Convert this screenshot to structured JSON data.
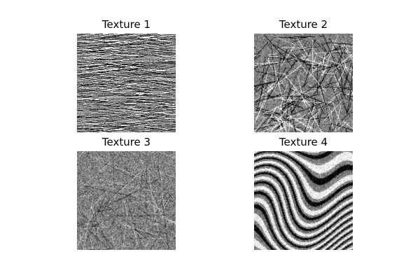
{
  "figure": {
    "panels": [
      {
        "title": "Texture 1",
        "texture": "layered-rock-horizontal-streaks"
      },
      {
        "title": "Texture 2",
        "texture": "fine-scratched-fibers"
      },
      {
        "title": "Texture 3",
        "texture": "fine-random-grain"
      },
      {
        "title": "Texture 4",
        "texture": "wavy-folded-strata"
      }
    ]
  }
}
